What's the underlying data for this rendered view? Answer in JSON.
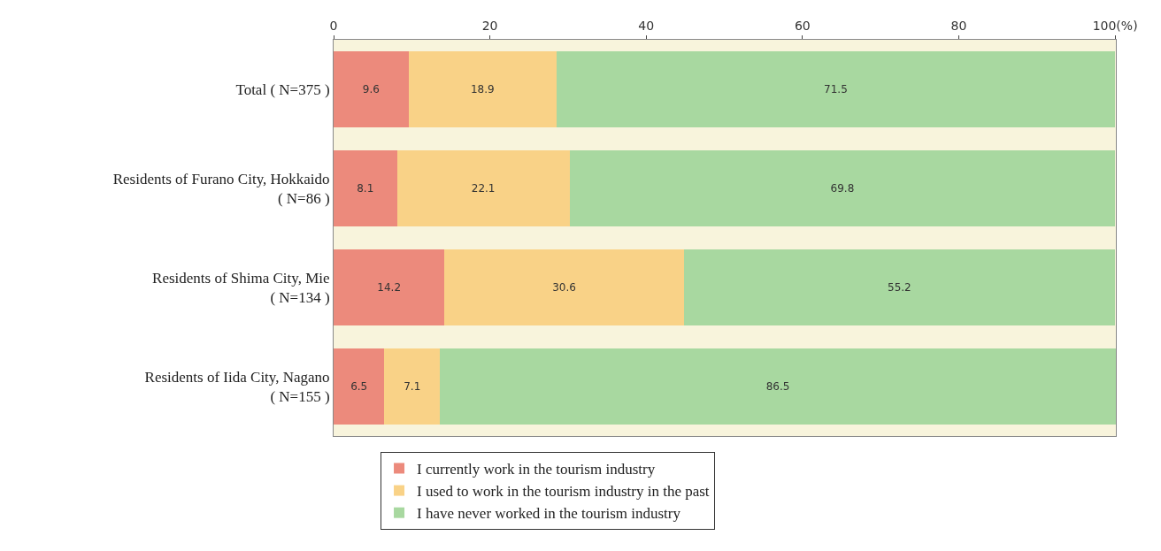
{
  "chart_data": {
    "type": "bar",
    "orientation": "horizontal",
    "stacked": true,
    "categories": [
      "Total ( N=375 )",
      "Residents of Furano City, Hokkaido\n( N=86 )",
      "Residents of Shima City, Mie\n( N=134 )",
      "Residents of Iida City, Nagano\n( N=155 )"
    ],
    "series": [
      {
        "name": "I currently work in the tourism industry",
        "color": "#ec8a7c",
        "values": [
          9.6,
          8.1,
          14.2,
          6.5
        ]
      },
      {
        "name": "I used to work in the tourism industry in the past",
        "color": "#f9d287",
        "values": [
          18.9,
          22.1,
          30.6,
          7.1
        ]
      },
      {
        "name": "I have never worked in the tourism industry",
        "color": "#a8d8a0",
        "values": [
          71.5,
          69.8,
          55.2,
          86.5
        ]
      }
    ],
    "xlim": [
      0,
      100.1
    ],
    "xticks": [
      0,
      20,
      40,
      60,
      80,
      {
        "value": 100,
        "label": "100(%)"
      }
    ],
    "data_labels": true,
    "legend": "bottom",
    "grid": false
  }
}
